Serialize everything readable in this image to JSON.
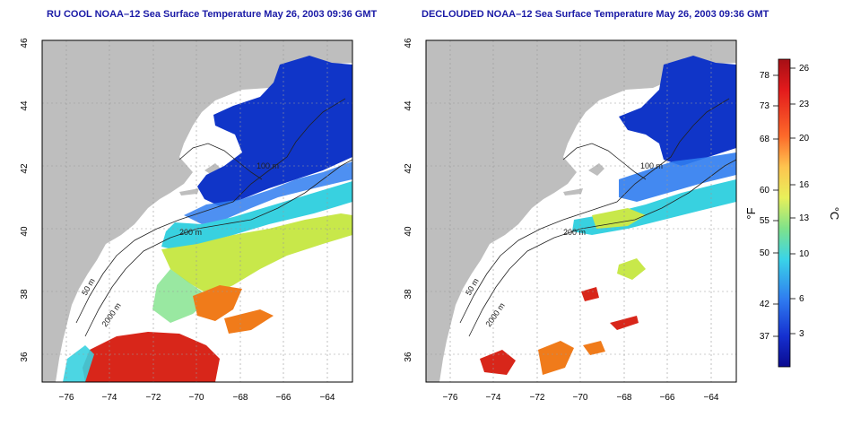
{
  "panels": [
    {
      "title": "RU COOL NOAA–12 Sea Surface Temperature May 26, 2003 09:36 GMT"
    },
    {
      "title": "DECLOUDED NOAA–12 Sea Surface Temperature May 26, 2003 09:36 GMT"
    }
  ],
  "axes": {
    "x_ticks": [
      "−76",
      "−74",
      "−72",
      "−70",
      "−68",
      "−66",
      "−64"
    ],
    "y_ticks": [
      "36",
      "38",
      "40",
      "42",
      "44",
      "46"
    ],
    "lon_range": [
      -77.2,
      -63.0
    ],
    "lat_range": [
      35.0,
      46.0
    ]
  },
  "contour_labels": [
    "50 m",
    "100 m",
    "200 m",
    "2000 m"
  ],
  "colorbar": {
    "f_label": "°F",
    "c_label": "°C",
    "f_ticks": [
      "78",
      "73",
      "68",
      "60",
      "55",
      "50",
      "42",
      "37"
    ],
    "c_ticks": [
      "26",
      "23",
      "20",
      "16",
      "13",
      "10",
      "6",
      "3"
    ],
    "colors": [
      "#d7191c",
      "#f46d43",
      "#fdae61",
      "#fee08b",
      "#e6f598",
      "#abdda4",
      "#66c2a5",
      "#2b83ba",
      "#1b3fd4",
      "#0a0a8f"
    ]
  },
  "colors": {
    "land": "#bebebe",
    "cold": "#1035c8",
    "cool": "#2f7cf0",
    "mild": "#38d1e0",
    "warm": "#c8e84a",
    "hot": "#f07b1a",
    "hotter": "#d8261a"
  }
}
